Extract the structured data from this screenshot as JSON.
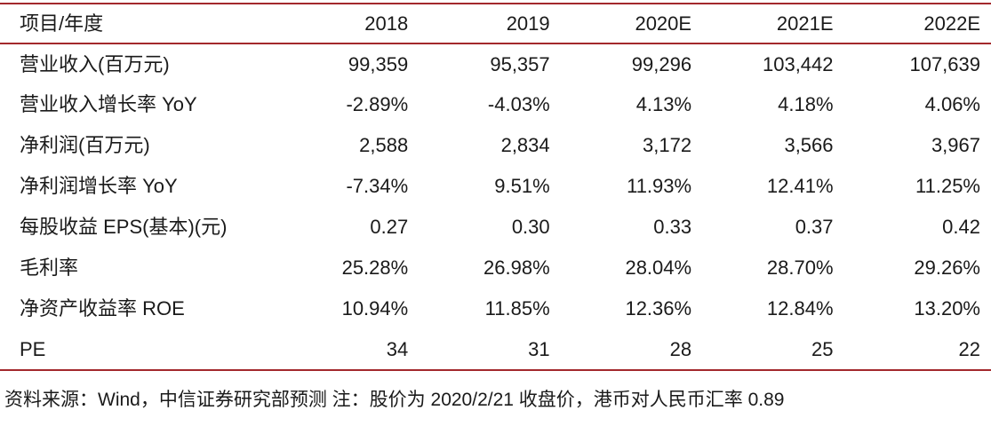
{
  "table": {
    "columns": [
      "项目/年度",
      "2018",
      "2019",
      "2020E",
      "2021E",
      "2022E"
    ],
    "rows": [
      {
        "label": "营业收入(百万元)",
        "values": [
          "99,359",
          "95,357",
          "99,296",
          "103,442",
          "107,639"
        ]
      },
      {
        "label": "营业收入增长率 YoY",
        "values": [
          "-2.89%",
          "-4.03%",
          "4.13%",
          "4.18%",
          "4.06%"
        ]
      },
      {
        "label": "净利润(百万元)",
        "values": [
          "2,588",
          "2,834",
          "3,172",
          "3,566",
          "3,967"
        ]
      },
      {
        "label": "净利润增长率 YoY",
        "values": [
          "-7.34%",
          "9.51%",
          "11.93%",
          "12.41%",
          "11.25%"
        ]
      },
      {
        "label": "每股收益 EPS(基本)(元)",
        "values": [
          "0.27",
          "0.30",
          "0.33",
          "0.37",
          "0.42"
        ]
      },
      {
        "label": "毛利率",
        "values": [
          "25.28%",
          "26.98%",
          "28.04%",
          "28.70%",
          "29.26%"
        ]
      },
      {
        "label": "净资产收益率 ROE",
        "values": [
          "10.94%",
          "11.85%",
          "12.36%",
          "12.84%",
          "13.20%"
        ]
      },
      {
        "label": "PE",
        "values": [
          "34",
          "31",
          "28",
          "25",
          "22"
        ]
      }
    ]
  },
  "footer": {
    "source_note": "资料来源：Wind，中信证券研究部预测 注：股价为 2020/2/21 收盘价，港币对人民币汇率 0.89"
  },
  "colors": {
    "accent_line": "#a3282c",
    "text": "#1a1a1a"
  }
}
